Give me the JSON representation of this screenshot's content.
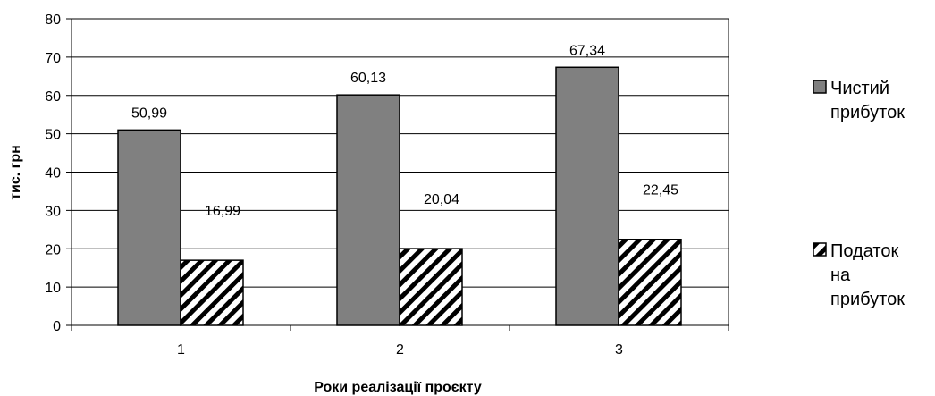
{
  "chart_data": {
    "type": "bar",
    "title": "",
    "xlabel": "Роки реалізації проєкту",
    "ylabel": "тис. грн",
    "categories": [
      "1",
      "2",
      "3"
    ],
    "series": [
      {
        "name": "Чистий прибуток",
        "name_lines": [
          "Чистий",
          "прибуток"
        ],
        "values": [
          50.99,
          60.13,
          67.34
        ],
        "labels": [
          "50,99",
          "60,13",
          "67,34"
        ],
        "fill": "#808080",
        "pattern": "solid"
      },
      {
        "name": "Податок на прибуток",
        "name_lines": [
          "Податок",
          "на",
          "прибуток"
        ],
        "values": [
          16.99,
          20.04,
          22.45
        ],
        "labels": [
          "16,99",
          "20,04",
          "22,45"
        ],
        "fill": "#ffffff",
        "pattern": "diagonal-stripes"
      }
    ],
    "ylim": [
      0,
      80
    ],
    "yticks": [
      0,
      10,
      20,
      30,
      40,
      50,
      60,
      70,
      80
    ],
    "grid": true,
    "legend_position": "right"
  }
}
